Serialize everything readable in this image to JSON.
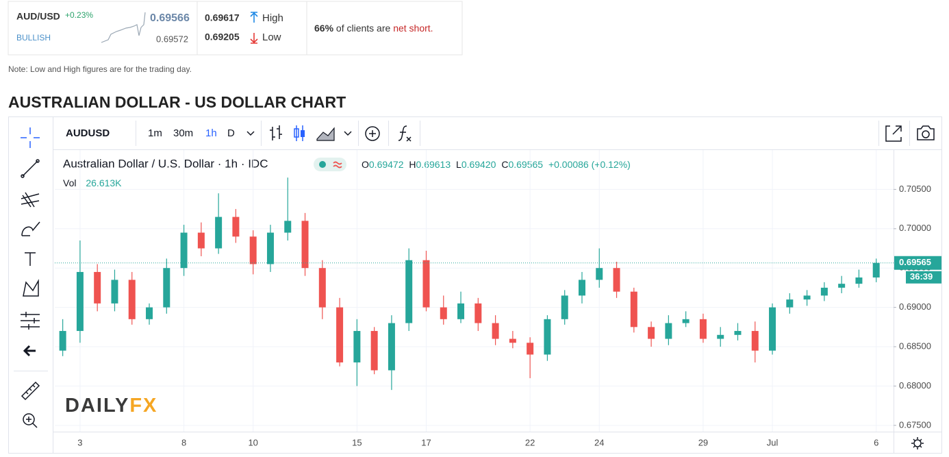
{
  "widget": {
    "symbol": "AUD/USD",
    "change": "+0.23%",
    "sentiment": "BULLISH",
    "price": "0.69566",
    "prev": "0.69572",
    "high": "0.69617",
    "high_label": "High",
    "low": "0.69205",
    "low_label": "Low",
    "clients_pct": "66%",
    "clients_text": "of clients are",
    "clients_position": "net short."
  },
  "note": "Note: Low and High figures are for the trading day.",
  "heading": "AUSTRALIAN DOLLAR - US DOLLAR CHART",
  "toolbar": {
    "symbol": "AUDUSD",
    "intervals": [
      "1m",
      "30m",
      "1h",
      "D"
    ]
  },
  "legend": {
    "title": "Australian Dollar / U.S. Dollar · 1h · IDC",
    "ohlc": [
      {
        "key": "O",
        "value": "0.69472"
      },
      {
        "key": "H",
        "value": "0.69613"
      },
      {
        "key": "L",
        "value": "0.69420"
      },
      {
        "key": "C",
        "value": "0.69565"
      }
    ],
    "change": "+0.00086 (+0.12%)",
    "vol_label": "Vol",
    "vol": "26.613K"
  },
  "watermark": [
    "DAILY",
    "FX"
  ],
  "countdown": "36:39",
  "chart_data": {
    "type": "candlestick",
    "x": [
      -0.5,
      0,
      0.5,
      1,
      1.5,
      2,
      2.5,
      3,
      3.5,
      4,
      4.5,
      5,
      5.5,
      6,
      6.5,
      7,
      7.5,
      8,
      8.5,
      9,
      9.5,
      10,
      10.5,
      11,
      11.5,
      12,
      12.5,
      13,
      13.5,
      14,
      14.5,
      15,
      15.5,
      16,
      16.5,
      17,
      17.5,
      18,
      18.5,
      19,
      19.5,
      20,
      20.5,
      21,
      21.5,
      22,
      22.5,
      23
    ],
    "open": [
      0.6845,
      0.687,
      0.6945,
      0.6905,
      0.6935,
      0.6885,
      0.69,
      0.695,
      0.6995,
      0.6975,
      0.7015,
      0.699,
      0.6955,
      0.6995,
      0.701,
      0.695,
      0.69,
      0.683,
      0.687,
      0.682,
      0.688,
      0.696,
      0.69,
      0.6885,
      0.6905,
      0.688,
      0.686,
      0.6855,
      0.684,
      0.6885,
      0.6915,
      0.6935,
      0.695,
      0.692,
      0.6875,
      0.686,
      0.688,
      0.6885,
      0.686,
      0.6865,
      0.687,
      0.6845,
      0.69,
      0.691,
      0.6915,
      0.6925,
      0.693,
      0.6938
    ],
    "high": [
      0.6885,
      0.6985,
      0.6955,
      0.6948,
      0.6945,
      0.6905,
      0.6962,
      0.7005,
      0.7008,
      0.7045,
      0.7025,
      0.6998,
      0.7005,
      0.7065,
      0.702,
      0.696,
      0.6912,
      0.6885,
      0.6875,
      0.689,
      0.6975,
      0.6972,
      0.6915,
      0.692,
      0.6912,
      0.689,
      0.687,
      0.6862,
      0.689,
      0.6922,
      0.6945,
      0.6975,
      0.6958,
      0.6925,
      0.6882,
      0.689,
      0.6895,
      0.6892,
      0.6875,
      0.688,
      0.6882,
      0.6905,
      0.6918,
      0.6922,
      0.6932,
      0.694,
      0.6948,
      0.6962
    ],
    "low": [
      0.6838,
      0.6855,
      0.6895,
      0.6895,
      0.6878,
      0.6878,
      0.6892,
      0.694,
      0.6965,
      0.6968,
      0.6982,
      0.6942,
      0.6945,
      0.6985,
      0.694,
      0.6885,
      0.6825,
      0.68,
      0.6815,
      0.6795,
      0.687,
      0.6895,
      0.6878,
      0.688,
      0.687,
      0.6852,
      0.6848,
      0.681,
      0.6832,
      0.6878,
      0.6905,
      0.6925,
      0.6912,
      0.6868,
      0.685,
      0.6852,
      0.6875,
      0.6855,
      0.685,
      0.6858,
      0.683,
      0.684,
      0.6892,
      0.6902,
      0.6908,
      0.6918,
      0.6925,
      0.6932
    ],
    "close": [
      0.687,
      0.6945,
      0.6905,
      0.6935,
      0.6885,
      0.69,
      0.695,
      0.6995,
      0.6975,
      0.7015,
      0.699,
      0.6955,
      0.6995,
      0.701,
      0.695,
      0.69,
      0.683,
      0.687,
      0.682,
      0.688,
      0.696,
      0.69,
      0.6885,
      0.6905,
      0.688,
      0.686,
      0.6855,
      0.684,
      0.6885,
      0.6915,
      0.6935,
      0.695,
      0.692,
      0.6875,
      0.686,
      0.688,
      0.6885,
      0.686,
      0.6865,
      0.687,
      0.6845,
      0.69,
      0.691,
      0.6915,
      0.6925,
      0.693,
      0.6938,
      0.69565
    ],
    "up_color": "#26a69a",
    "down_color": "#ef5350",
    "xlim": [
      -0.73,
      23.5
    ],
    "ylim": [
      0.6742,
      0.71
    ],
    "xticks": [
      {
        "value": 0,
        "label": "3"
      },
      {
        "value": 3,
        "label": "8"
      },
      {
        "value": 5,
        "label": "10"
      },
      {
        "value": 8,
        "label": "15"
      },
      {
        "value": 10,
        "label": "17"
      },
      {
        "value": 13,
        "label": "22"
      },
      {
        "value": 15,
        "label": "24"
      },
      {
        "value": 18,
        "label": "29"
      },
      {
        "value": 20,
        "label": "Jul"
      },
      {
        "value": 23,
        "label": "6"
      }
    ],
    "yticks": [
      {
        "value": 0.675,
        "label": "0.67500"
      },
      {
        "value": 0.68,
        "label": "0.68000"
      },
      {
        "value": 0.685,
        "label": "0.68500"
      },
      {
        "value": 0.69,
        "label": "0.69000"
      },
      {
        "value": 0.695,
        "label": "0.69500"
      },
      {
        "value": 0.7,
        "label": "0.70000"
      },
      {
        "value": 0.705,
        "label": "0.70500"
      }
    ],
    "last_price": 0.69565,
    "grid": true
  }
}
